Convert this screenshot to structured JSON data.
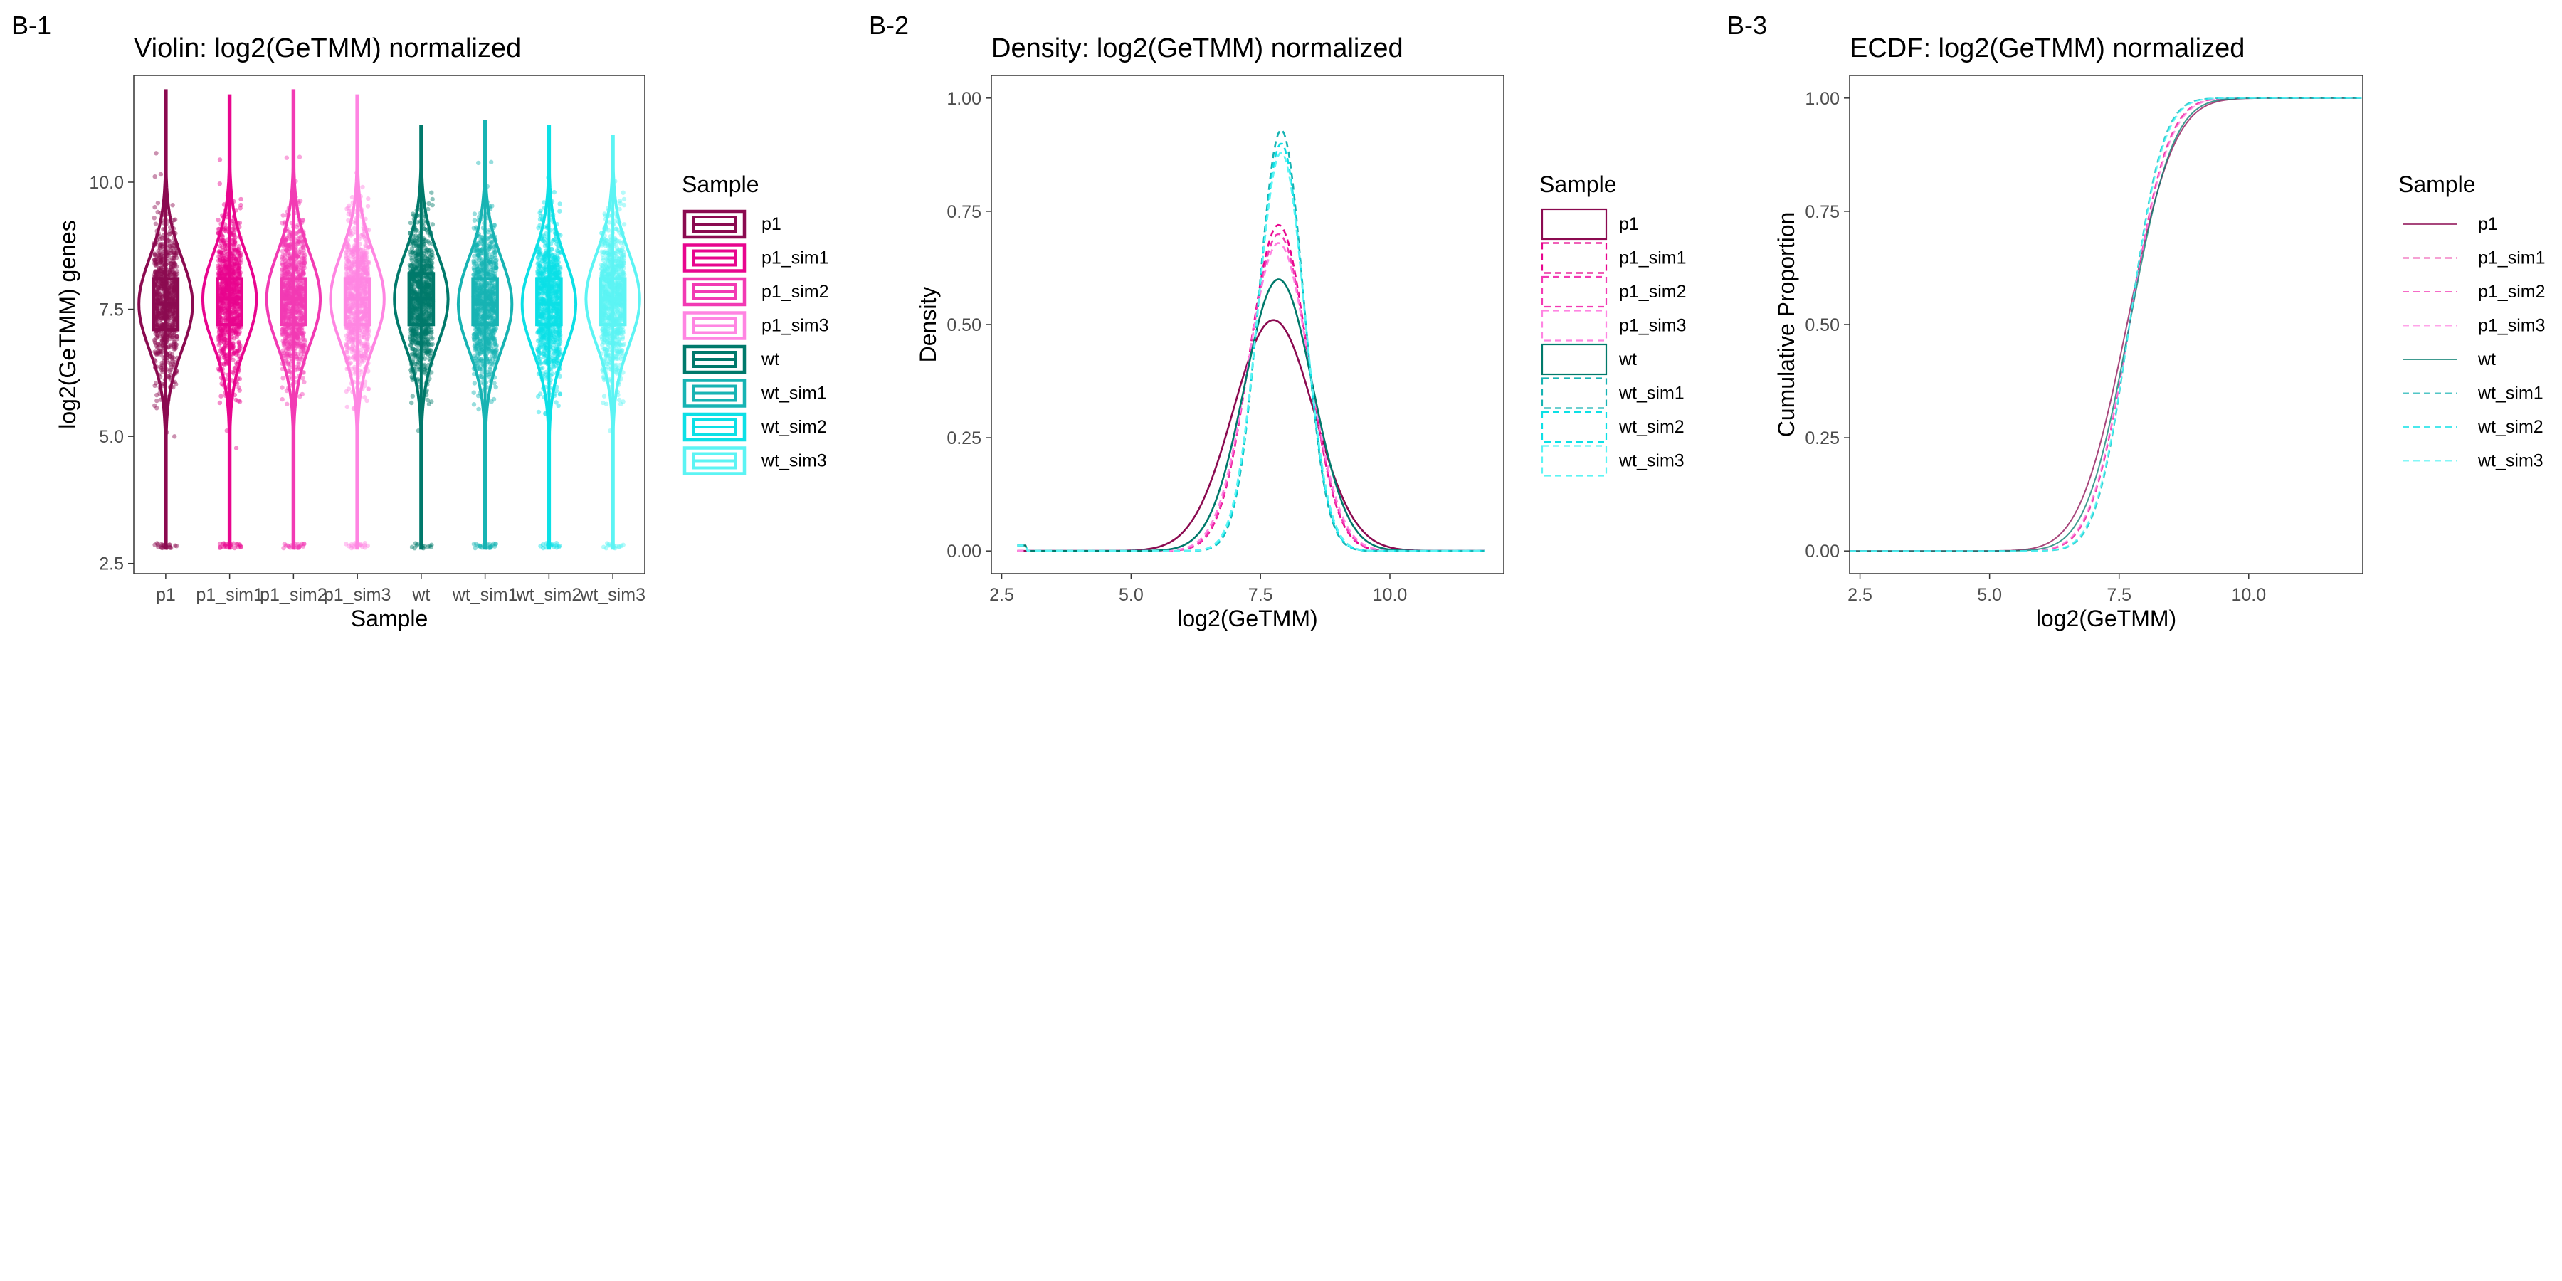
{
  "colors": {
    "p1": "#8B0A50",
    "p1_sim1": "#E8058E",
    "p1_sim2": "#F23AB3",
    "p1_sim3": "#FF85E2",
    "wt": "#00796B",
    "wt_sim1": "#17B3B3",
    "wt_sim2": "#0CE0E6",
    "wt_sim3": "#5CF4F4",
    "panel_border": "#333333",
    "tick_text": "#4d4d4d"
  },
  "legend": {
    "title": "Sample",
    "items": [
      "p1",
      "p1_sim1",
      "p1_sim2",
      "p1_sim3",
      "wt",
      "wt_sim1",
      "wt_sim2",
      "wt_sim3"
    ]
  },
  "chart_data": [
    {
      "tag": "B-1",
      "type": "violin",
      "title": "Violin: log2(GeTMM) normalized",
      "xlabel": "Sample",
      "ylabel": "log2(GeTMM) genes",
      "categories": [
        "p1",
        "p1_sim1",
        "p1_sim2",
        "p1_sim3",
        "wt",
        "wt_sim1",
        "wt_sim2",
        "wt_sim3"
      ],
      "ylim": [
        2.3,
        12.1
      ],
      "yticks": [
        2.5,
        5.0,
        7.5,
        10.0
      ],
      "ytick_labels": [
        "2.5",
        "5.0",
        "7.5",
        "10.0"
      ],
      "series": [
        {
          "name": "p1",
          "min": 2.8,
          "q1": 7.1,
          "median": 7.6,
          "q3": 8.1,
          "max": 11.8
        },
        {
          "name": "p1_sim1",
          "min": 2.8,
          "q1": 7.2,
          "median": 7.7,
          "q3": 8.1,
          "max": 11.7
        },
        {
          "name": "p1_sim2",
          "min": 2.8,
          "q1": 7.2,
          "median": 7.7,
          "q3": 8.1,
          "max": 11.8
        },
        {
          "name": "p1_sim3",
          "min": 2.8,
          "q1": 7.2,
          "median": 7.7,
          "q3": 8.1,
          "max": 11.7
        },
        {
          "name": "wt",
          "min": 2.8,
          "q1": 7.2,
          "median": 7.7,
          "q3": 8.2,
          "max": 11.1
        },
        {
          "name": "wt_sim1",
          "min": 2.8,
          "q1": 7.2,
          "median": 7.6,
          "q3": 8.1,
          "max": 11.2
        },
        {
          "name": "wt_sim2",
          "min": 2.8,
          "q1": 7.2,
          "median": 7.6,
          "q3": 8.1,
          "max": 11.1
        },
        {
          "name": "wt_sim3",
          "min": 2.8,
          "q1": 7.2,
          "median": 7.7,
          "q3": 8.1,
          "max": 10.9
        }
      ]
    },
    {
      "tag": "B-2",
      "type": "line",
      "title": "Density: log2(GeTMM) normalized",
      "xlabel": "log2(GeTMM)",
      "ylabel": "Density",
      "xlim": [
        2.3,
        12.2
      ],
      "ylim": [
        -0.05,
        1.05
      ],
      "xticks": [
        2.5,
        5.0,
        7.5,
        10.0
      ],
      "xtick_labels": [
        "2.5",
        "5.0",
        "7.5",
        "10.0"
      ],
      "yticks": [
        0.0,
        0.25,
        0.5,
        0.75,
        1.0
      ],
      "ytick_labels": [
        "0.00",
        "0.25",
        "0.50",
        "0.75",
        "1.00"
      ],
      "series": [
        {
          "name": "p1",
          "peak_x": 7.75,
          "peak_y": 0.51
        },
        {
          "name": "p1_sim1",
          "peak_x": 7.85,
          "peak_y": 0.72
        },
        {
          "name": "p1_sim2",
          "peak_x": 7.85,
          "peak_y": 0.7
        },
        {
          "name": "p1_sim3",
          "peak_x": 7.85,
          "peak_y": 0.68
        },
        {
          "name": "wt",
          "peak_x": 7.85,
          "peak_y": 0.6
        },
        {
          "name": "wt_sim1",
          "peak_x": 7.9,
          "peak_y": 0.93
        },
        {
          "name": "wt_sim2",
          "peak_x": 7.9,
          "peak_y": 0.9
        },
        {
          "name": "wt_sim3",
          "peak_x": 7.9,
          "peak_y": 0.88
        }
      ]
    },
    {
      "tag": "B-3",
      "type": "line",
      "title": "ECDF: log2(GeTMM) normalized",
      "xlabel": "log2(GeTMM)",
      "ylabel": "Cumulative Proportion",
      "xlim": [
        2.3,
        12.2
      ],
      "ylim": [
        -0.05,
        1.05
      ],
      "xticks": [
        2.5,
        5.0,
        7.5,
        10.0
      ],
      "xtick_labels": [
        "2.5",
        "5.0",
        "7.5",
        "10.0"
      ],
      "yticks": [
        0.0,
        0.25,
        0.5,
        0.75,
        1.0
      ],
      "ytick_labels": [
        "0.00",
        "0.25",
        "0.50",
        "0.75",
        "1.00"
      ],
      "series": [
        {
          "name": "p1",
          "median_x": 7.65
        },
        {
          "name": "p1_sim1",
          "median_x": 7.7
        },
        {
          "name": "p1_sim2",
          "median_x": 7.7
        },
        {
          "name": "p1_sim3",
          "median_x": 7.7
        },
        {
          "name": "wt",
          "median_x": 7.7
        },
        {
          "name": "wt_sim1",
          "median_x": 7.7
        },
        {
          "name": "wt_sim2",
          "median_x": 7.7
        },
        {
          "name": "wt_sim3",
          "median_x": 7.7
        }
      ]
    }
  ]
}
